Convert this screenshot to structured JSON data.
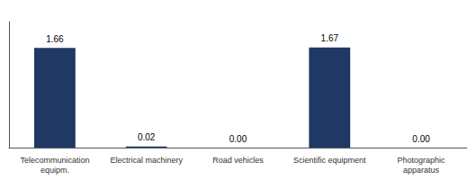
{
  "chart_data": {
    "type": "bar",
    "categories": [
      "Telecommunication\nequipm.",
      "Electrical machinery",
      "Road vehicles",
      "Scientific equipment",
      "Photographic\napparatus"
    ],
    "values": [
      1.66,
      0.02,
      0.0,
      1.67,
      0.0
    ],
    "value_labels": [
      "1.66",
      "0.02",
      "0.00",
      "1.67",
      "0.00"
    ],
    "color": "#1F3864",
    "ylim": [
      0,
      2.1
    ],
    "tick_labels": "x",
    "data_labels": true,
    "grid": false
  }
}
